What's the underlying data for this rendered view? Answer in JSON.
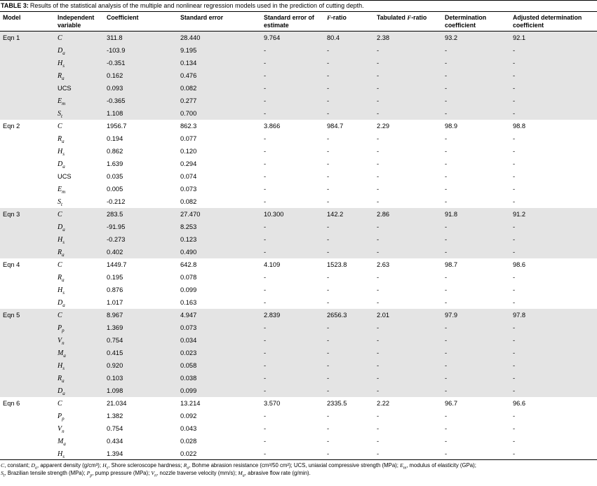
{
  "colors": {
    "row_shade": "#e4e4e4"
  },
  "title": {
    "tag": "TABLE 3:",
    "text": "Results of the statistical analysis of the multiple and nonlinear regression models used in the prediction of cutting depth."
  },
  "columns": [
    [
      {
        "t": "Model"
      }
    ],
    [
      {
        "t": "Independent variable"
      }
    ],
    [
      {
        "t": "Coefficient"
      }
    ],
    [
      {
        "t": "Standard error"
      }
    ],
    [
      {
        "t": "Standard error of estimate"
      }
    ],
    [
      {
        "t": "F",
        "i": true
      },
      {
        "t": "-ratio"
      }
    ],
    [
      {
        "t": "Tabulated "
      },
      {
        "t": "F",
        "i": true
      },
      {
        "t": "-ratio"
      }
    ],
    [
      {
        "t": "Determination coefficient"
      }
    ],
    [
      {
        "t": "Adjusted determination coefficient"
      }
    ]
  ],
  "groups": [
    {
      "model": "Eqn 1",
      "rows": [
        {
          "v": "C",
          "sub": "",
          "i": true,
          "vals": [
            "311.8",
            "28.440",
            "9.764",
            "80.4",
            "2.38",
            "93.2",
            "92.1"
          ]
        },
        {
          "v": "D",
          "sub": "a",
          "i": true,
          "vals": [
            "-103.9",
            "9.195",
            "-",
            "-",
            "-",
            "-",
            "-"
          ]
        },
        {
          "v": "H",
          "sub": "s",
          "i": true,
          "vals": [
            "-0.351",
            "0.134",
            "-",
            "-",
            "-",
            "-",
            "-"
          ]
        },
        {
          "v": "R",
          "sub": "a",
          "i": true,
          "vals": [
            "0.162",
            "0.476",
            "-",
            "-",
            "-",
            "-",
            "-"
          ]
        },
        {
          "v": "UCS",
          "sub": "",
          "i": false,
          "vals": [
            "0.093",
            "0.082",
            "-",
            "-",
            "-",
            "-",
            "-"
          ]
        },
        {
          "v": "E",
          "sub": "m",
          "i": true,
          "vals": [
            "-0.365",
            "0.277",
            "-",
            "-",
            "-",
            "-",
            "-"
          ]
        },
        {
          "v": "S",
          "sub": "t",
          "i": true,
          "vals": [
            "1.108",
            "0.700",
            "-",
            "-",
            "-",
            "-",
            "-"
          ]
        }
      ]
    },
    {
      "model": "Eqn 2",
      "rows": [
        {
          "v": "C",
          "sub": "",
          "i": true,
          "vals": [
            "1956.7",
            "862.3",
            "3.866",
            "984.7",
            "2.29",
            "98.9",
            "98.8"
          ]
        },
        {
          "v": "R",
          "sub": "a",
          "i": true,
          "vals": [
            "0.194",
            "0.077",
            "-",
            "-",
            "-",
            "-",
            "-"
          ]
        },
        {
          "v": "H",
          "sub": "s",
          "i": true,
          "vals": [
            "0.862",
            "0.120",
            "-",
            "-",
            "-",
            "-",
            "-"
          ]
        },
        {
          "v": "D",
          "sub": "a",
          "i": true,
          "vals": [
            "1.639",
            "0.294",
            "-",
            "-",
            "-",
            "-",
            "-"
          ]
        },
        {
          "v": "UCS",
          "sub": "",
          "i": false,
          "vals": [
            "0.035",
            "0.074",
            "-",
            "-",
            "-",
            "-",
            "-"
          ]
        },
        {
          "v": "E",
          "sub": "m",
          "i": true,
          "vals": [
            "0.005",
            "0.073",
            "-",
            "-",
            "-",
            "-",
            "-"
          ]
        },
        {
          "v": "S",
          "sub": "t",
          "i": true,
          "vals": [
            "-0.212",
            "0.082",
            "-",
            "-",
            "-",
            "-",
            "-"
          ]
        }
      ]
    },
    {
      "model": "Eqn 3",
      "rows": [
        {
          "v": "C",
          "sub": "",
          "i": true,
          "vals": [
            "283.5",
            "27.470",
            "10.300",
            "142.2",
            "2.86",
            "91.8",
            "91.2"
          ]
        },
        {
          "v": "D",
          "sub": "a",
          "i": true,
          "vals": [
            "-91.95",
            "8.253",
            "-",
            "-",
            "-",
            "-",
            "-"
          ]
        },
        {
          "v": "H",
          "sub": "s",
          "i": true,
          "vals": [
            "-0.273",
            "0.123",
            "-",
            "-",
            "-",
            "-",
            "-"
          ]
        },
        {
          "v": "R",
          "sub": "a",
          "i": true,
          "vals": [
            "0.402",
            "0.490",
            "-",
            "-",
            "-",
            "-",
            "-"
          ]
        }
      ]
    },
    {
      "model": "Eqn 4",
      "rows": [
        {
          "v": "C",
          "sub": "",
          "i": true,
          "vals": [
            "1449.7",
            "642.8",
            "4.109",
            "1523.8",
            "2.63",
            "98.7",
            "98.6"
          ]
        },
        {
          "v": "R",
          "sub": "a",
          "i": true,
          "vals": [
            "0.195",
            "0.078",
            "-",
            "-",
            "-",
            "-",
            "-"
          ]
        },
        {
          "v": "H",
          "sub": "s",
          "i": true,
          "vals": [
            "0.876",
            "0.099",
            "-",
            "-",
            "-",
            "-",
            "-"
          ]
        },
        {
          "v": "D",
          "sub": "a",
          "i": true,
          "vals": [
            "1.017",
            "0.163",
            "-",
            "-",
            "-",
            "-",
            "-"
          ]
        }
      ]
    },
    {
      "model": "Eqn 5",
      "rows": [
        {
          "v": "C",
          "sub": "",
          "i": true,
          "vals": [
            "8.967",
            "4.947",
            "2.839",
            "2656.3",
            "2.01",
            "97.9",
            "97.8"
          ]
        },
        {
          "v": "P",
          "sub": "p",
          "i": true,
          "vals": [
            "1.369",
            "0.073",
            "-",
            "-",
            "-",
            "-",
            "-"
          ]
        },
        {
          "v": "V",
          "sub": "n",
          "i": true,
          "vals": [
            "0.754",
            "0.034",
            "-",
            "-",
            "-",
            "-",
            "-"
          ]
        },
        {
          "v": "M",
          "sub": "a",
          "i": true,
          "vals": [
            "0.415",
            "0.023",
            "-",
            "-",
            "-",
            "-",
            "-"
          ]
        },
        {
          "v": "H",
          "sub": "s",
          "i": true,
          "vals": [
            "0.920",
            "0.058",
            "-",
            "-",
            "-",
            "-",
            "-"
          ]
        },
        {
          "v": "R",
          "sub": "a",
          "i": true,
          "vals": [
            "0.103",
            "0.038",
            "-",
            "-",
            "-",
            "-",
            "-"
          ]
        },
        {
          "v": "D",
          "sub": "a",
          "i": true,
          "vals": [
            "1.098",
            "0.099",
            "-",
            "-",
            "-",
            "-",
            "-"
          ]
        }
      ]
    },
    {
      "model": "Eqn 6",
      "rows": [
        {
          "v": "C",
          "sub": "",
          "i": true,
          "vals": [
            "21.034",
            "13.214",
            "3.570",
            "2335.5",
            "2.22",
            "96.7",
            "96.6"
          ]
        },
        {
          "v": "P",
          "sub": "p",
          "i": true,
          "vals": [
            "1.382",
            "0.092",
            "-",
            "-",
            "-",
            "-",
            "-"
          ]
        },
        {
          "v": "V",
          "sub": "n",
          "i": true,
          "vals": [
            "0.754",
            "0.043",
            "-",
            "-",
            "-",
            "-",
            "-"
          ]
        },
        {
          "v": "M",
          "sub": "a",
          "i": true,
          "vals": [
            "0.434",
            "0.028",
            "-",
            "-",
            "-",
            "-",
            "-"
          ]
        },
        {
          "v": "H",
          "sub": "s",
          "i": true,
          "vals": [
            "1.394",
            "0.022",
            "-",
            "-",
            "-",
            "-",
            "-"
          ]
        }
      ]
    }
  ],
  "footnote": [
    {
      "t": "C",
      "i": true
    },
    {
      "t": ", constant; "
    },
    {
      "t": "D",
      "i": true
    },
    {
      "t": "a",
      "i": true,
      "sub": true
    },
    {
      "t": ", apparent density (g/cm³); "
    },
    {
      "t": "H",
      "i": true
    },
    {
      "t": "s",
      "i": true,
      "sub": true
    },
    {
      "t": ", Shore scleroscope hardness; "
    },
    {
      "t": "R",
      "i": true
    },
    {
      "t": "a",
      "i": true,
      "sub": true
    },
    {
      "t": ", Bohme abrasion resistance (cm³/50 cm²); UCS, uniaxial compressive strength (MPa); "
    },
    {
      "t": "E",
      "i": true
    },
    {
      "t": "m",
      "i": true,
      "sub": true
    },
    {
      "t": ", modulus of elasticity (GPa);"
    },
    {
      "br": true
    },
    {
      "t": "S",
      "i": true
    },
    {
      "t": "t",
      "i": true,
      "sub": true
    },
    {
      "t": ", Brazilian tensile strength (MPa); "
    },
    {
      "t": "P",
      "i": true
    },
    {
      "t": "p",
      "i": true,
      "sub": true
    },
    {
      "t": ", pump pressure (MPa); "
    },
    {
      "t": "V",
      "i": true
    },
    {
      "t": "n",
      "i": true,
      "sub": true
    },
    {
      "t": ", nozzle traverse velocity (mm/s); "
    },
    {
      "t": "M",
      "i": true
    },
    {
      "t": "a",
      "i": true,
      "sub": true
    },
    {
      "t": ", abrasive flow rate (g/min)."
    }
  ]
}
